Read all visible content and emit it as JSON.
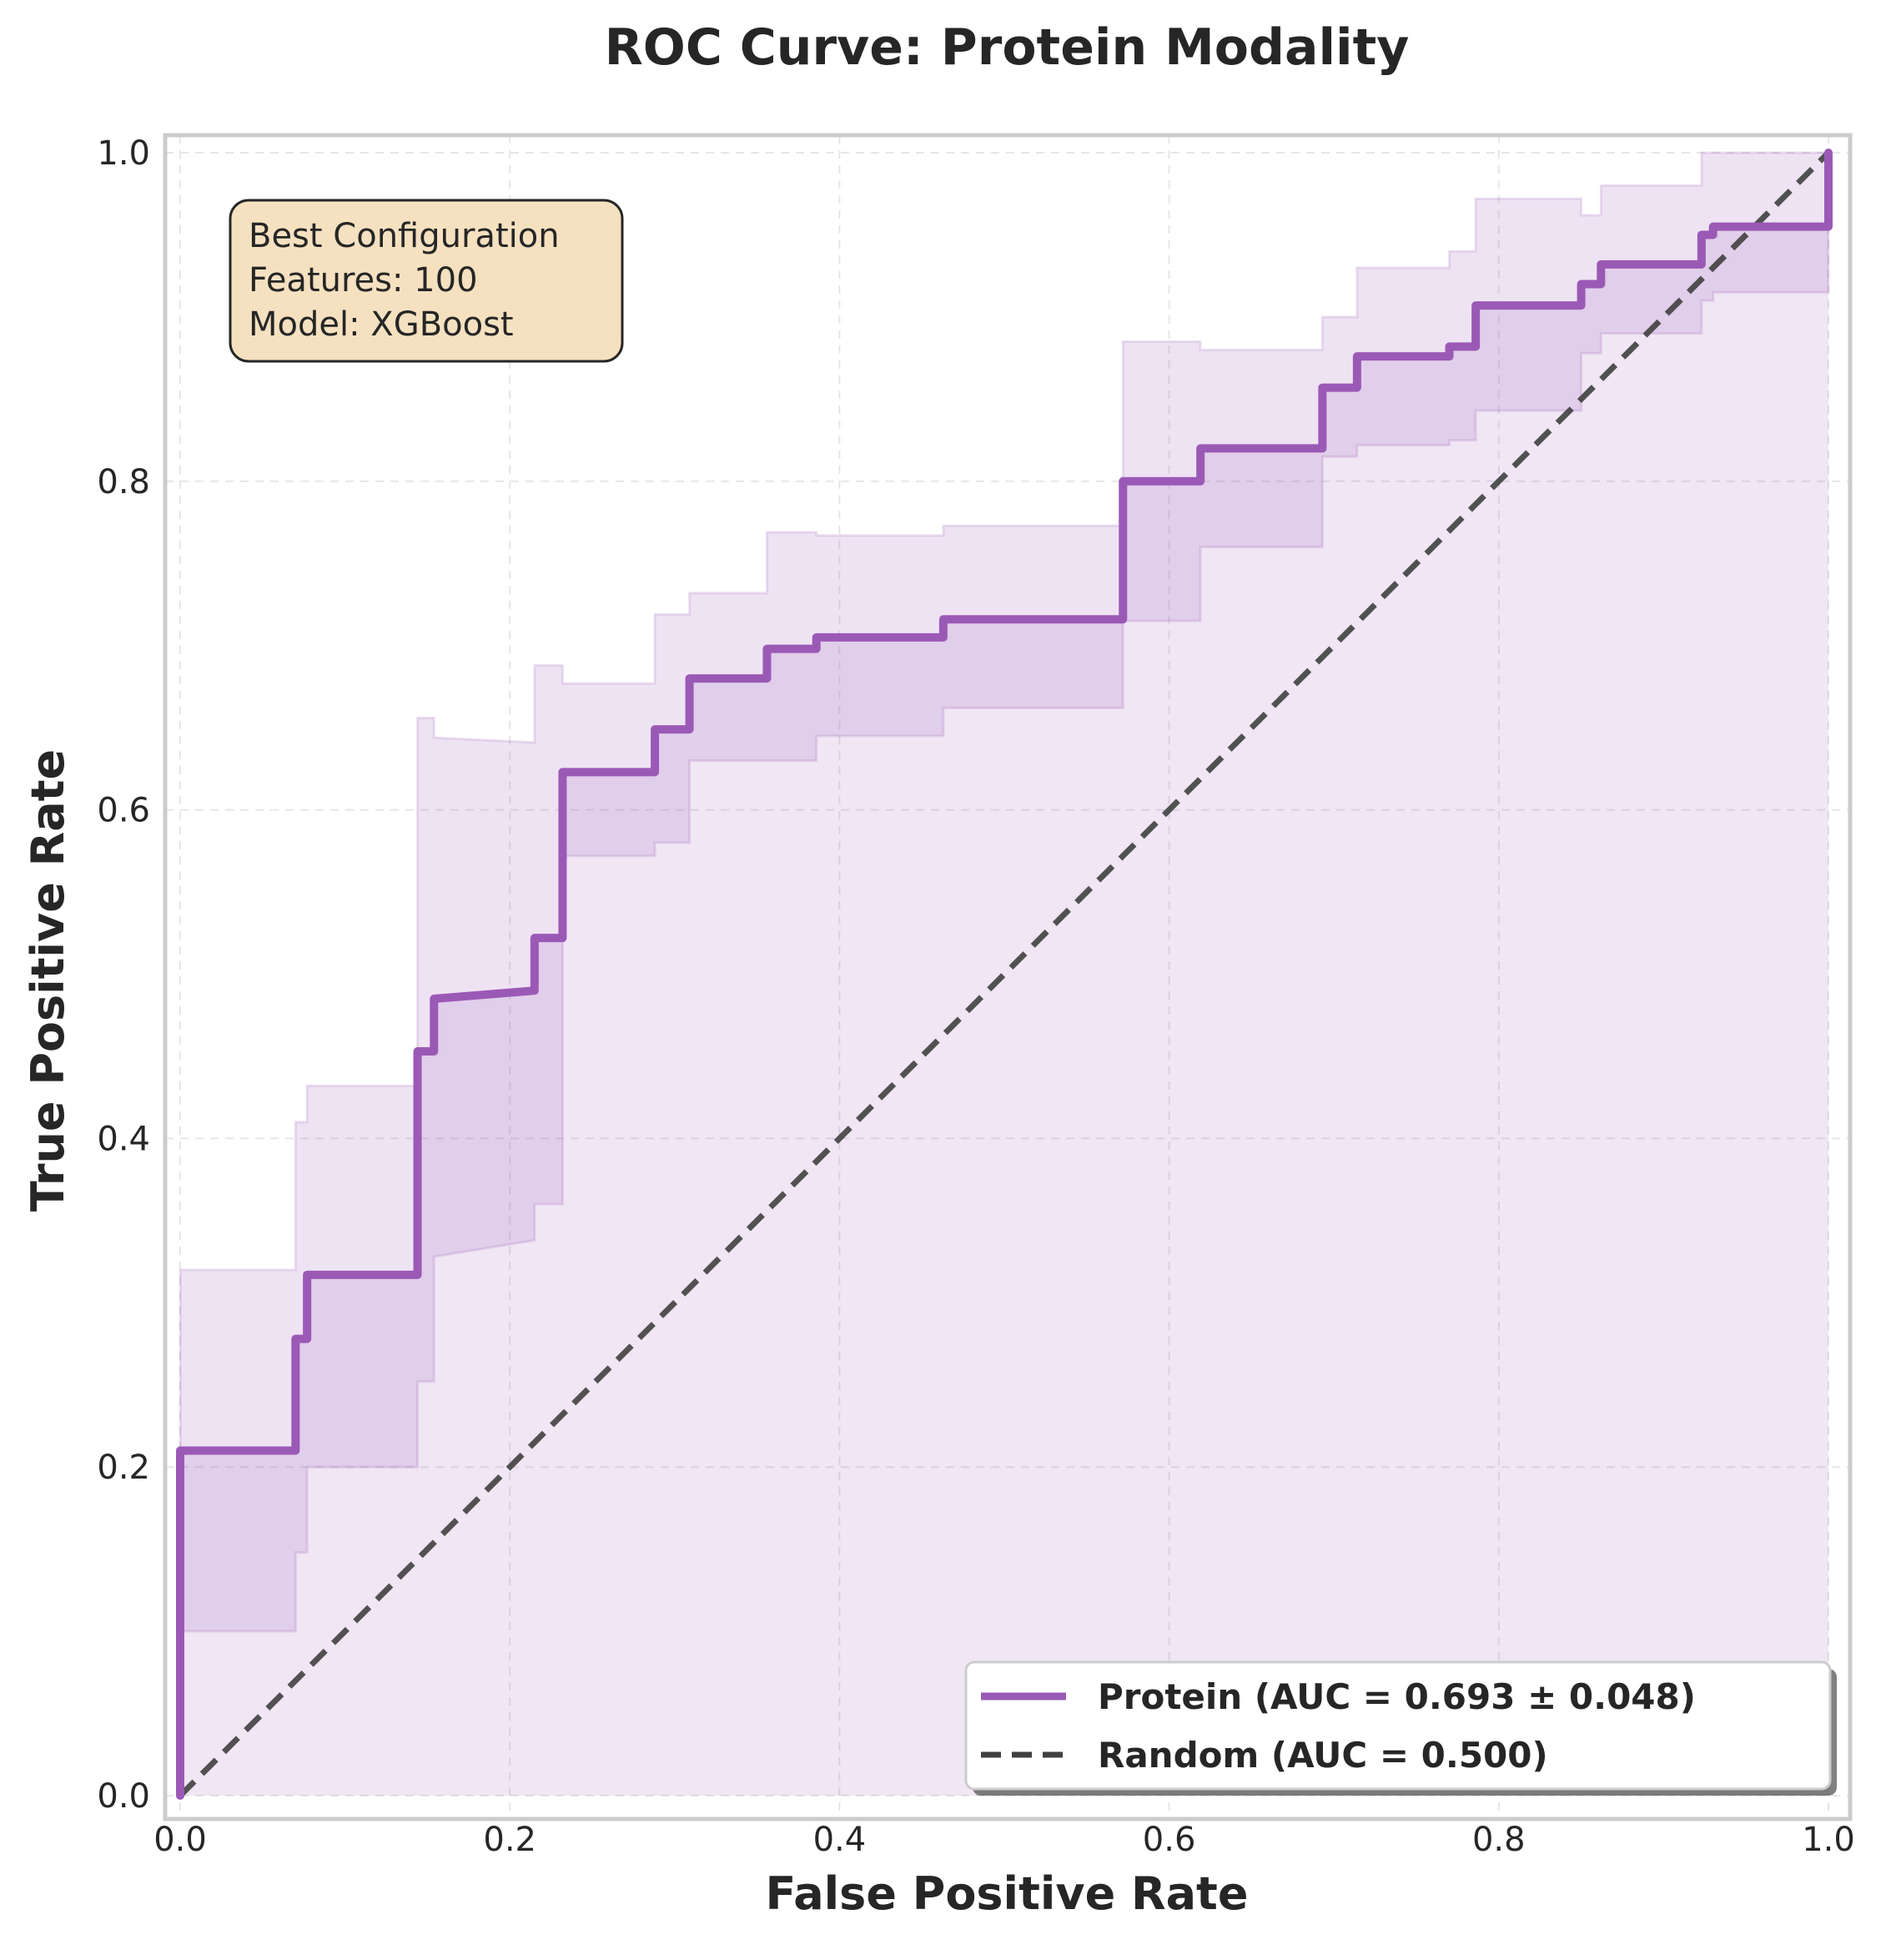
{
  "chart_data": {
    "type": "line",
    "title": "ROC Curve: Protein Modality",
    "xlabel": "False Positive Rate",
    "ylabel": "True Positive Rate",
    "xlim": [
      0,
      1
    ],
    "ylim": [
      0,
      1
    ],
    "xticks": [
      "0.0",
      "0.2",
      "0.4",
      "0.6",
      "0.8",
      "1.0"
    ],
    "yticks": [
      "0.0",
      "0.2",
      "0.4",
      "0.6",
      "0.8",
      "1.0"
    ],
    "grid": true,
    "legend_position": "lower-right",
    "annotation": {
      "lines": [
        "Best Configuration",
        "Features: 100",
        "Model: XGBoost"
      ]
    },
    "series": [
      {
        "name": "Protein (AUC = 0.693 ± 0.048)",
        "color": "#9b59b6",
        "style": "solid",
        "x": [
          0.0,
          0.0,
          0.07,
          0.07,
          0.077,
          0.077,
          0.144,
          0.144,
          0.154,
          0.154,
          0.215,
          0.215,
          0.232,
          0.232,
          0.288,
          0.288,
          0.309,
          0.309,
          0.356,
          0.356,
          0.386,
          0.386,
          0.463,
          0.463,
          0.572,
          0.572,
          0.619,
          0.619,
          0.693,
          0.693,
          0.714,
          0.714,
          0.77,
          0.77,
          0.786,
          0.786,
          0.85,
          0.85,
          0.862,
          0.862,
          0.923,
          0.923,
          0.93,
          0.93,
          1.0,
          1.0
        ],
        "y": [
          0.0,
          0.21,
          0.21,
          0.278,
          0.278,
          0.317,
          0.317,
          0.453,
          0.453,
          0.485,
          0.49,
          0.522,
          0.522,
          0.623,
          0.623,
          0.649,
          0.649,
          0.68,
          0.68,
          0.698,
          0.698,
          0.705,
          0.705,
          0.716,
          0.716,
          0.8,
          0.8,
          0.82,
          0.82,
          0.857,
          0.857,
          0.876,
          0.876,
          0.882,
          0.882,
          0.907,
          0.907,
          0.92,
          0.92,
          0.932,
          0.932,
          0.95,
          0.95,
          0.955,
          0.955,
          1.0
        ]
      },
      {
        "name": "Random (AUC = 0.500)",
        "color": "#404040",
        "style": "dashed",
        "x": [
          0,
          1
        ],
        "y": [
          0,
          1
        ]
      }
    ],
    "band": {
      "x": [
        0.0,
        0.07,
        0.07,
        0.077,
        0.077,
        0.144,
        0.144,
        0.154,
        0.154,
        0.215,
        0.215,
        0.232,
        0.232,
        0.288,
        0.288,
        0.309,
        0.309,
        0.356,
        0.356,
        0.386,
        0.386,
        0.463,
        0.463,
        0.572,
        0.572,
        0.619,
        0.619,
        0.693,
        0.693,
        0.714,
        0.714,
        0.77,
        0.77,
        0.786,
        0.786,
        0.85,
        0.85,
        0.862,
        0.862,
        0.923,
        0.923,
        0.93,
        0.93,
        1.0
      ],
      "upper": [
        0.32,
        0.32,
        0.41,
        0.41,
        0.432,
        0.432,
        0.656,
        0.656,
        0.644,
        0.641,
        0.688,
        0.688,
        0.677,
        0.677,
        0.719,
        0.719,
        0.732,
        0.732,
        0.769,
        0.769,
        0.767,
        0.767,
        0.773,
        0.773,
        0.885,
        0.885,
        0.88,
        0.88,
        0.9,
        0.9,
        0.93,
        0.93,
        0.94,
        0.94,
        0.972,
        0.972,
        0.962,
        0.962,
        0.98,
        0.98,
        1.0,
        1.0,
        1.0,
        1.0
      ],
      "lower": [
        0.1,
        0.1,
        0.148,
        0.148,
        0.2,
        0.2,
        0.252,
        0.252,
        0.328,
        0.338,
        0.36,
        0.36,
        0.572,
        0.572,
        0.58,
        0.58,
        0.63,
        0.63,
        0.63,
        0.63,
        0.645,
        0.645,
        0.662,
        0.662,
        0.715,
        0.715,
        0.76,
        0.76,
        0.815,
        0.815,
        0.822,
        0.822,
        0.825,
        0.825,
        0.843,
        0.843,
        0.878,
        0.878,
        0.89,
        0.89,
        0.91,
        0.91,
        0.915,
        0.915
      ]
    }
  }
}
